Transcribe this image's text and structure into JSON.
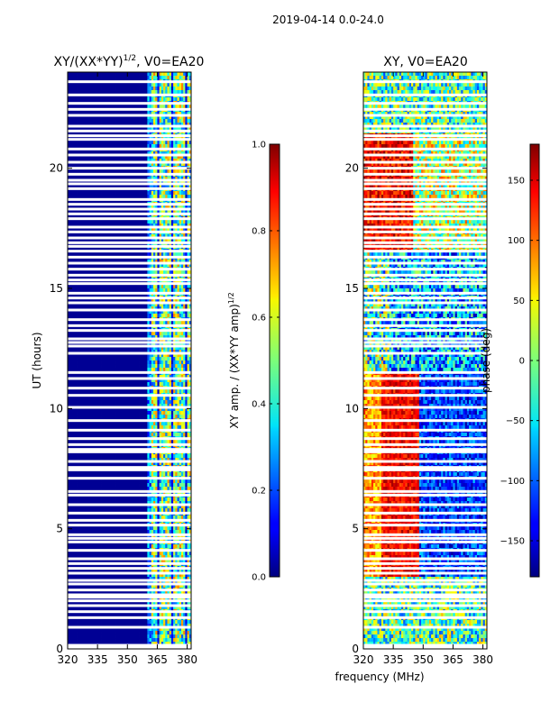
{
  "figure": {
    "suptitle": "2019-04-14 0.0-24.0",
    "shared_xlabel": "frequency (MHz)"
  },
  "chart_data": [
    {
      "type": "heatmap",
      "title": "XY/(XX*YY)",
      "title_superscript": "1/2",
      "title_suffix": ", V0=EA20",
      "xlabel": "",
      "ylabel": "UT (hours)",
      "xlim": [
        320,
        382
      ],
      "ylim": [
        0,
        24
      ],
      "xticks": [
        320,
        335,
        350,
        365,
        380
      ],
      "yticks": [
        0,
        5,
        10,
        15,
        20
      ],
      "colormap": "jet",
      "colorbar": {
        "label": "XY amp. / (XX*YY amp)",
        "label_superscript": "1/2",
        "range": [
          0.0,
          1.0
        ],
        "ticks": [
          "0.0",
          "0.2",
          "0.4",
          "0.6",
          "0.8",
          "1.0"
        ]
      },
      "description_values": {
        "low_band_value": 0.02,
        "high_band_start_mhz": 360,
        "high_band_range": [
          0.2,
          0.75
        ]
      }
    },
    {
      "type": "heatmap",
      "title": "XY, V0=EA20",
      "xlabel": "frequency (MHz)",
      "ylabel": "",
      "xlim": [
        320,
        382
      ],
      "ylim": [
        0,
        24
      ],
      "xticks": [
        320,
        335,
        350,
        365,
        380
      ],
      "yticks": [
        0,
        5,
        10,
        15,
        20
      ],
      "colormap": "jet",
      "colorbar": {
        "label": "phase (deg)",
        "range": [
          -180,
          180
        ],
        "ticks": [
          "−150",
          "−100",
          "−50",
          "0",
          "50",
          "100",
          "150"
        ]
      }
    }
  ],
  "flagged_ut_hours": [
    0.05,
    0.15,
    0.9,
    1.3,
    1.55,
    1.8,
    2.0,
    2.15,
    2.25,
    2.45,
    2.7,
    2.85,
    3.15,
    3.35,
    3.55,
    3.75,
    4.1,
    4.45,
    4.6,
    4.75,
    5.15,
    5.35,
    5.65,
    6.0,
    6.4,
    6.55,
    7.1,
    7.45,
    7.55,
    7.8,
    8.2,
    8.3,
    8.5,
    8.75,
    9.1,
    9.5,
    10.05,
    10.55,
    10.85,
    11.25,
    11.5,
    12.3,
    12.6,
    12.75,
    12.9,
    13.25,
    13.45,
    13.7,
    14.1,
    14.4,
    14.6,
    14.8,
    15.2,
    15.35,
    15.55,
    15.8,
    16.05,
    16.3,
    16.55,
    16.75,
    16.9,
    17.1,
    17.35,
    17.55,
    17.9,
    18.1,
    18.3,
    18.5,
    18.7,
    19.15,
    19.35,
    19.5,
    19.75,
    20.0,
    20.25,
    20.55,
    20.8,
    21.2,
    21.35,
    21.55,
    21.75,
    22.2,
    22.45,
    22.7,
    23.05,
    23.6
  ]
}
